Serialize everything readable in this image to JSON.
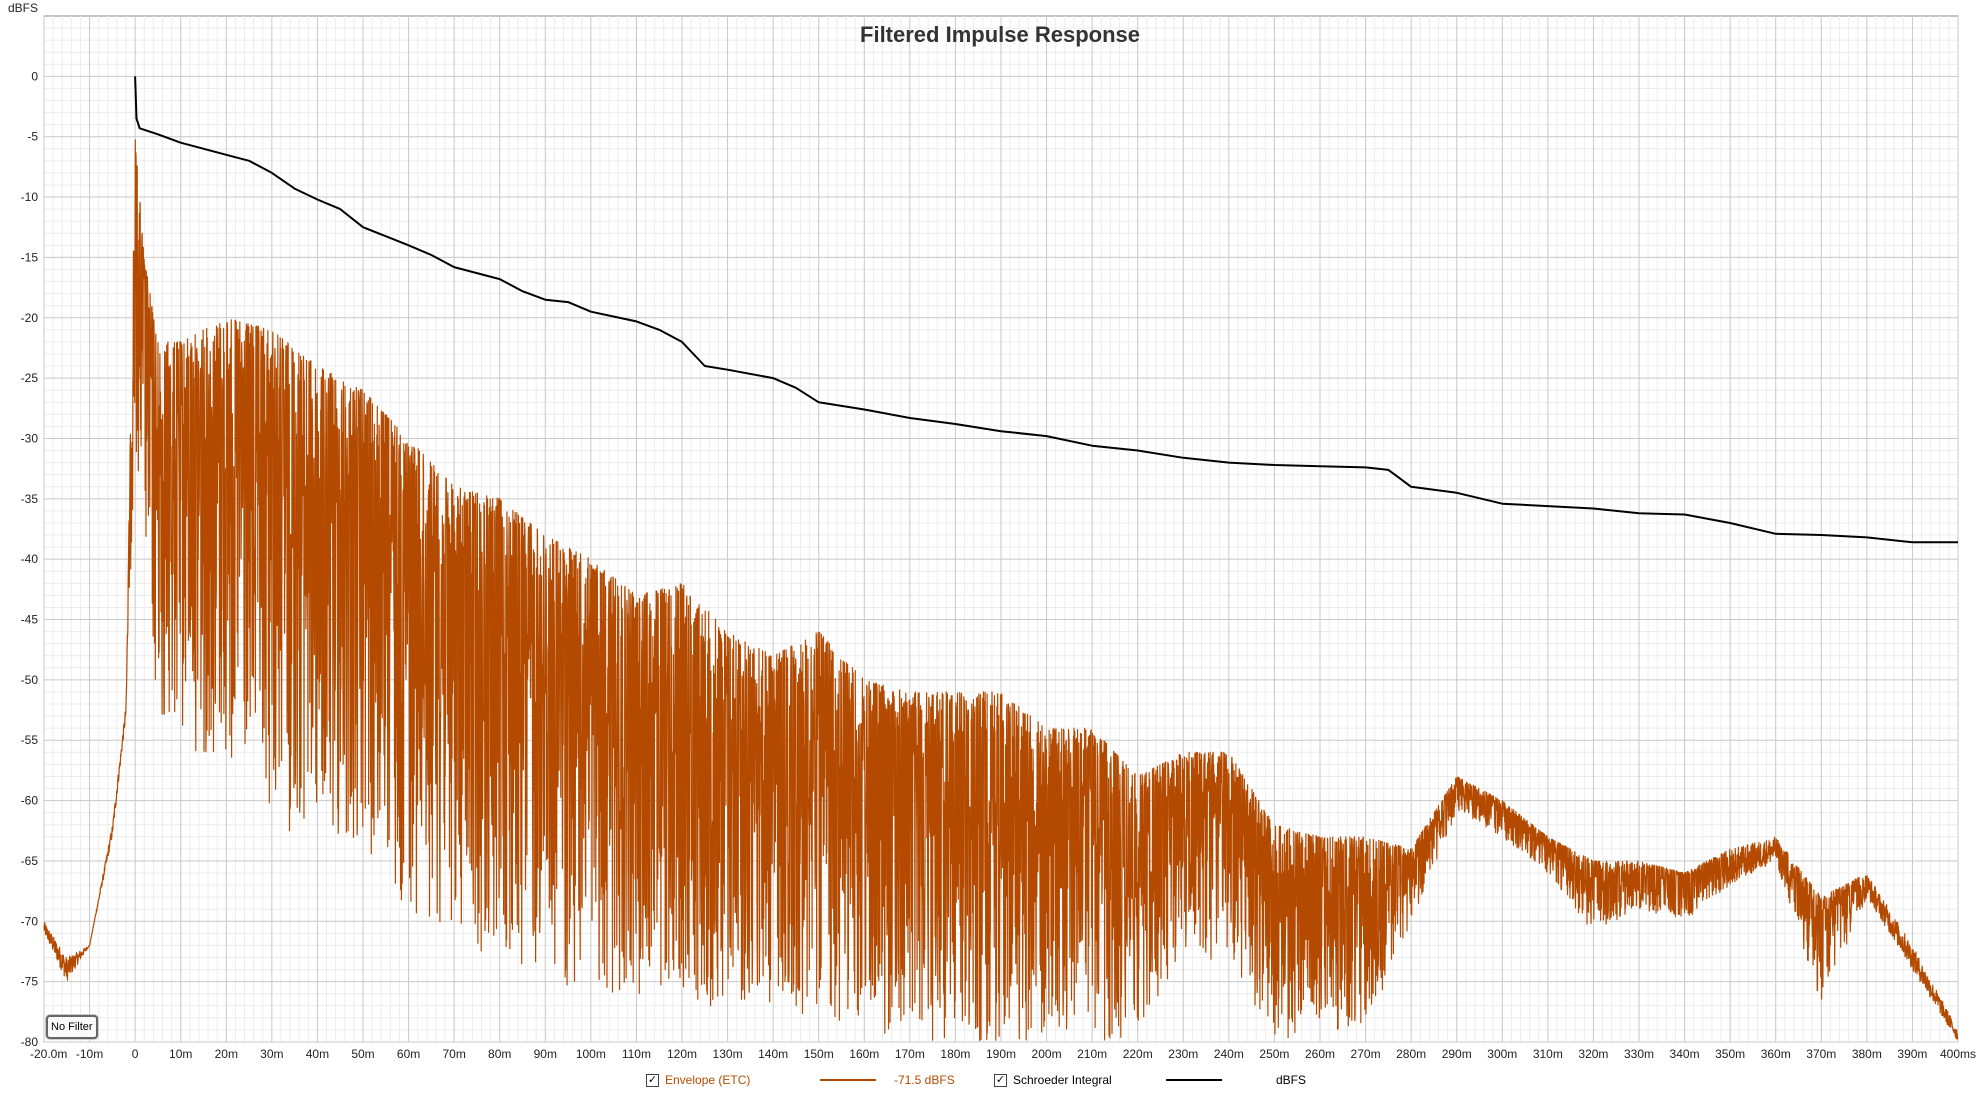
{
  "chart_data": {
    "type": "line",
    "title": "Filtered Impulse Response",
    "ylabel": "dBFS",
    "xlabel": "",
    "xlim": [
      -20,
      400
    ],
    "ylim": [
      -80,
      5
    ],
    "x_unit": "ms",
    "grid": true,
    "yticks": [
      0,
      -5,
      -10,
      -15,
      -20,
      -25,
      -30,
      -35,
      -40,
      -45,
      -50,
      -55,
      -60,
      -65,
      -70,
      -75,
      -80
    ],
    "ytick_labels": [
      "0",
      "-5",
      "-10",
      "-15",
      "-20",
      "-25",
      "-30",
      "-35",
      "-40",
      "-45",
      "-50",
      "-55",
      "-60",
      "-65",
      "-70",
      "-75",
      "-80"
    ],
    "xticks": [
      -20,
      -10,
      0,
      10,
      20,
      30,
      40,
      50,
      60,
      70,
      80,
      90,
      100,
      110,
      120,
      130,
      140,
      150,
      160,
      170,
      180,
      190,
      200,
      210,
      220,
      230,
      240,
      250,
      260,
      270,
      280,
      290,
      300,
      310,
      320,
      330,
      340,
      350,
      360,
      370,
      380,
      390,
      400
    ],
    "xtick_labels": [
      "-20.0m",
      "-10m",
      "0",
      "10m",
      "20m",
      "30m",
      "40m",
      "50m",
      "60m",
      "70m",
      "80m",
      "90m",
      "100m",
      "110m",
      "120m",
      "130m",
      "140m",
      "150m",
      "160m",
      "170m",
      "180m",
      "190m",
      "200m",
      "210m",
      "220m",
      "230m",
      "240m",
      "250m",
      "260m",
      "270m",
      "280m",
      "290m",
      "300m",
      "310m",
      "320m",
      "330m",
      "340m",
      "350m",
      "360m",
      "370m",
      "380m",
      "390m",
      "400ms"
    ],
    "series": [
      {
        "name": "Envelope (ETC)",
        "color": "#b34a00",
        "readout": "-71.5 dBFS",
        "checked": true,
        "envelope_upper": [
          [
            -20,
            -70
          ],
          [
            -15,
            -73
          ],
          [
            -10,
            -72
          ],
          [
            -5,
            -62
          ],
          [
            -2,
            -52
          ],
          [
            0,
            -5
          ],
          [
            2,
            -15
          ],
          [
            5,
            -22
          ],
          [
            10,
            -22
          ],
          [
            20,
            -20
          ],
          [
            30,
            -21
          ],
          [
            40,
            -24
          ],
          [
            50,
            -26
          ],
          [
            60,
            -30
          ],
          [
            70,
            -34
          ],
          [
            80,
            -35
          ],
          [
            90,
            -38
          ],
          [
            100,
            -40
          ],
          [
            110,
            -43
          ],
          [
            120,
            -42
          ],
          [
            130,
            -46
          ],
          [
            140,
            -48
          ],
          [
            150,
            -46
          ],
          [
            160,
            -50
          ],
          [
            170,
            -51
          ],
          [
            180,
            -51
          ],
          [
            190,
            -51
          ],
          [
            200,
            -54
          ],
          [
            210,
            -54
          ],
          [
            220,
            -58
          ],
          [
            230,
            -56
          ],
          [
            240,
            -56
          ],
          [
            250,
            -62
          ],
          [
            260,
            -63
          ],
          [
            270,
            -63
          ],
          [
            280,
            -64
          ],
          [
            290,
            -58
          ],
          [
            300,
            -60
          ],
          [
            310,
            -63
          ],
          [
            320,
            -65
          ],
          [
            330,
            -65
          ],
          [
            340,
            -66
          ],
          [
            350,
            -64
          ],
          [
            360,
            -63
          ],
          [
            370,
            -68
          ],
          [
            380,
            -66
          ],
          [
            390,
            -72
          ],
          [
            400,
            -79
          ]
        ],
        "envelope_lower": [
          [
            -20,
            -71
          ],
          [
            -15,
            -75
          ],
          [
            -10,
            -72
          ],
          [
            -5,
            -63
          ],
          [
            -2,
            -53
          ],
          [
            0,
            -30
          ],
          [
            5,
            -55
          ],
          [
            10,
            -55
          ],
          [
            20,
            -58
          ],
          [
            30,
            -62
          ],
          [
            40,
            -64
          ],
          [
            50,
            -66
          ],
          [
            60,
            -69
          ],
          [
            70,
            -71
          ],
          [
            80,
            -74
          ],
          [
            90,
            -75
          ],
          [
            100,
            -76
          ],
          [
            110,
            -76
          ],
          [
            120,
            -76
          ],
          [
            130,
            -78
          ],
          [
            140,
            -77
          ],
          [
            150,
            -78
          ],
          [
            160,
            -79
          ],
          [
            170,
            -80
          ],
          [
            180,
            -80
          ],
          [
            190,
            -80
          ],
          [
            200,
            -80
          ],
          [
            210,
            -80
          ],
          [
            220,
            -80
          ],
          [
            230,
            -72
          ],
          [
            240,
            -74
          ],
          [
            250,
            -80
          ],
          [
            260,
            -79
          ],
          [
            270,
            -79
          ],
          [
            280,
            -70
          ],
          [
            290,
            -61
          ],
          [
            300,
            -63
          ],
          [
            310,
            -66
          ],
          [
            320,
            -71
          ],
          [
            330,
            -69
          ],
          [
            340,
            -70
          ],
          [
            350,
            -67
          ],
          [
            360,
            -65
          ],
          [
            370,
            -77
          ],
          [
            380,
            -68
          ],
          [
            390,
            -74
          ],
          [
            400,
            -80
          ]
        ]
      },
      {
        "name": "Schroeder Integral",
        "color": "#000000",
        "readout": "dBFS",
        "checked": true,
        "points": [
          [
            0,
            0
          ],
          [
            0.3,
            -3.5
          ],
          [
            1,
            -4.3
          ],
          [
            5,
            -4.8
          ],
          [
            10,
            -5.5
          ],
          [
            20,
            -6.5
          ],
          [
            25,
            -7.0
          ],
          [
            30,
            -8.0
          ],
          [
            35,
            -9.3
          ],
          [
            40,
            -10.2
          ],
          [
            45,
            -11.0
          ],
          [
            50,
            -12.5
          ],
          [
            60,
            -14.0
          ],
          [
            65,
            -14.8
          ],
          [
            70,
            -15.8
          ],
          [
            80,
            -16.8
          ],
          [
            85,
            -17.8
          ],
          [
            90,
            -18.5
          ],
          [
            95,
            -18.7
          ],
          [
            100,
            -19.5
          ],
          [
            110,
            -20.3
          ],
          [
            115,
            -21.0
          ],
          [
            120,
            -22.0
          ],
          [
            125,
            -24.0
          ],
          [
            130,
            -24.3
          ],
          [
            140,
            -25.0
          ],
          [
            145,
            -25.8
          ],
          [
            150,
            -27.0
          ],
          [
            160,
            -27.6
          ],
          [
            170,
            -28.3
          ],
          [
            180,
            -28.8
          ],
          [
            190,
            -29.4
          ],
          [
            200,
            -29.8
          ],
          [
            210,
            -30.6
          ],
          [
            220,
            -31.0
          ],
          [
            230,
            -31.6
          ],
          [
            240,
            -32.0
          ],
          [
            250,
            -32.2
          ],
          [
            260,
            -32.3
          ],
          [
            270,
            -32.4
          ],
          [
            275,
            -32.6
          ],
          [
            280,
            -34.0
          ],
          [
            290,
            -34.5
          ],
          [
            300,
            -35.4
          ],
          [
            310,
            -35.6
          ],
          [
            320,
            -35.8
          ],
          [
            330,
            -36.2
          ],
          [
            340,
            -36.3
          ],
          [
            350,
            -37.0
          ],
          [
            360,
            -37.9
          ],
          [
            370,
            -38.0
          ],
          [
            380,
            -38.2
          ],
          [
            390,
            -38.6
          ],
          [
            400,
            -38.6
          ]
        ]
      }
    ]
  },
  "controls": {
    "no_filter_label": "No Filter"
  }
}
